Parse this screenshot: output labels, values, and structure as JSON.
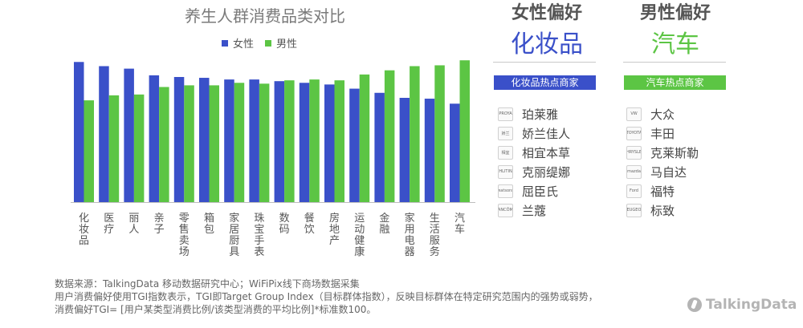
{
  "chart_data": {
    "type": "bar",
    "title": "养生人群消费品类对比",
    "categories": [
      "化妆品",
      "医疗",
      "丽人",
      "亲子",
      "零售卖场",
      "箱包",
      "家居厨具",
      "珠宝手表",
      "数码",
      "餐饮",
      "房地产",
      "运动健康",
      "金融",
      "家用电器",
      "生活服务",
      "汽车"
    ],
    "series": [
      {
        "name": "女性",
        "color": "#3a50c9",
        "values": [
          168,
          163,
          160,
          152,
          150,
          149,
          147,
          147,
          145,
          143,
          141,
          136,
          131,
          125,
          124,
          118
        ]
      },
      {
        "name": "男性",
        "color": "#5cc544",
        "values": [
          122,
          128,
          129,
          138,
          140,
          140,
          143,
          142,
          146,
          147,
          146,
          153,
          158,
          163,
          164,
          170
        ]
      }
    ],
    "ylim": [
      0,
      175
    ],
    "legend": "top-center",
    "grid": false,
    "xlabel": "",
    "ylabel": ""
  },
  "female_panel": {
    "title": "女性偏好",
    "highlight": "化妆品",
    "bar_label": "化妆品热点商家",
    "accent": "#3a50c9",
    "brands": [
      {
        "name": "珀莱雅",
        "logo": "PROYA"
      },
      {
        "name": "娇兰佳人",
        "logo": "娇兰"
      },
      {
        "name": "相宜本草",
        "logo": "相宜"
      },
      {
        "name": "克丽缇娜",
        "logo": "CHLITINA"
      },
      {
        "name": "屈臣氏",
        "logo": "watsons"
      },
      {
        "name": "兰蔻",
        "logo": "LANCÔME"
      }
    ]
  },
  "male_panel": {
    "title": "男性偏好",
    "highlight": "汽车",
    "bar_label": "汽车热点商家",
    "accent": "#5cc544",
    "brands": [
      {
        "name": "大众",
        "logo": "VW"
      },
      {
        "name": "丰田",
        "logo": "TOYOTA"
      },
      {
        "name": "克莱斯勒",
        "logo": "CHRYSLER"
      },
      {
        "name": "马自达",
        "logo": "mazda"
      },
      {
        "name": "福特",
        "logo": "Ford"
      },
      {
        "name": "标致",
        "logo": "PEUGEOT"
      }
    ]
  },
  "notes": [
    "数据来源：TalkingData 移动数据研究中心；WiFiPix线下商场数据采集",
    "用户消费偏好使用TGI指数表示，TGI即Target Group Index（目标群体指数），反映目标群体在特定研究范围内的强势或弱势，",
    "消费偏好TGI= [用户某类型消费比例/该类型消费的平均比例]*标准数100。"
  ],
  "brand_mark": "TalkingData"
}
